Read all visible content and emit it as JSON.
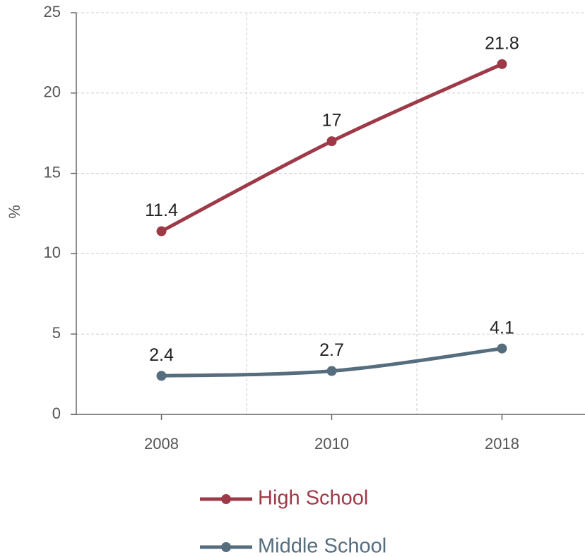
{
  "chart_data": {
    "type": "line",
    "y_label": "%",
    "categories": [
      "2008",
      "2010",
      "2018"
    ],
    "series": [
      {
        "name": "High School",
        "color": "#9e3a48",
        "values": [
          11.4,
          17,
          21.8
        ]
      },
      {
        "name": "Middle School",
        "color": "#566d7e",
        "values": [
          2.4,
          2.7,
          4.1
        ]
      }
    ],
    "ylim": [
      0,
      25
    ],
    "yticks": [
      0,
      5,
      10,
      15,
      20,
      25
    ],
    "grid": true,
    "legend": "bottom"
  }
}
